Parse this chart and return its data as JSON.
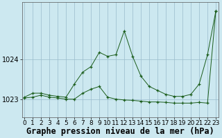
{
  "xlabel": "Graphe pression niveau de la mer (hPa)",
  "bg_color": "#cce8f0",
  "line_color": "#1a5c1a",
  "grid_color": "#99bbcc",
  "x_ticks": [
    0,
    1,
    2,
    3,
    4,
    5,
    6,
    7,
    8,
    9,
    10,
    11,
    12,
    13,
    14,
    15,
    16,
    17,
    18,
    19,
    20,
    21,
    22,
    23
  ],
  "y_ticks": [
    1023,
    1024
  ],
  "ylim": [
    1022.55,
    1025.45
  ],
  "xlim": [
    -0.3,
    23.3
  ],
  "line1_y": [
    1023.05,
    1023.15,
    1023.15,
    1023.1,
    1023.07,
    1023.05,
    1023.38,
    1023.68,
    1023.82,
    1024.18,
    1024.08,
    1024.12,
    1024.72,
    1024.08,
    1023.58,
    1023.32,
    1023.22,
    1023.12,
    1023.07,
    1023.07,
    1023.12,
    1023.38,
    1024.12,
    1025.22
  ],
  "line2_y": [
    1023.03,
    1023.05,
    1023.1,
    1023.05,
    1023.03,
    1023.0,
    1023.0,
    1023.15,
    1023.25,
    1023.32,
    1023.05,
    1023.0,
    1022.98,
    1022.97,
    1022.95,
    1022.93,
    1022.93,
    1022.92,
    1022.9,
    1022.9,
    1022.9,
    1022.92,
    1022.9,
    1025.22
  ],
  "tick_fontsize": 6.5,
  "xlabel_fontsize": 8.5
}
